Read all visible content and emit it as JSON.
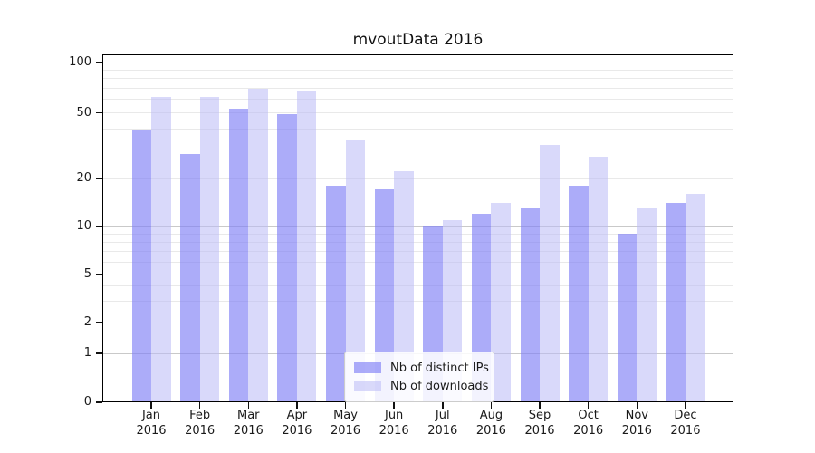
{
  "chart_data": {
    "type": "bar",
    "title": "mvoutData 2016",
    "categories": [
      "Jan",
      "Feb",
      "Mar",
      "Apr",
      "May",
      "Jun",
      "Jul",
      "Aug",
      "Sep",
      "Oct",
      "Nov",
      "Dec"
    ],
    "x_tick_second_line": "2016",
    "series": [
      {
        "name": "Nb of distinct IPs",
        "color": "rgba(125,125,245,0.64)",
        "values": [
          39,
          28,
          53,
          49,
          18,
          17,
          10,
          12,
          13,
          18,
          9,
          14
        ]
      },
      {
        "name": "Nb of downloads",
        "color": "rgba(186,186,246,0.55)",
        "values": [
          62,
          62,
          70,
          68,
          34,
          22,
          11,
          14,
          32,
          27,
          13,
          16
        ]
      }
    ],
    "yscale": "symlog",
    "ylim": [
      0,
      112
    ],
    "y_ticks_labeled": [
      100,
      50,
      20,
      10,
      5,
      2,
      1,
      0
    ],
    "y_major_gridlines": [
      1,
      10,
      100
    ],
    "y_minor_gridlines": [
      2,
      3,
      4,
      5,
      6,
      7,
      8,
      9,
      20,
      30,
      40,
      50,
      60,
      70,
      80,
      90
    ],
    "grid": true,
    "legend_position": "lower center",
    "colors": {
      "distinct_ips_bar": "#aaaafa",
      "downloads_bar": "#dadafa",
      "major_grid": "#c9c9c9",
      "minor_grid": "#e9e9e9",
      "axis": "#000000",
      "text": "#1a1a1a"
    }
  }
}
